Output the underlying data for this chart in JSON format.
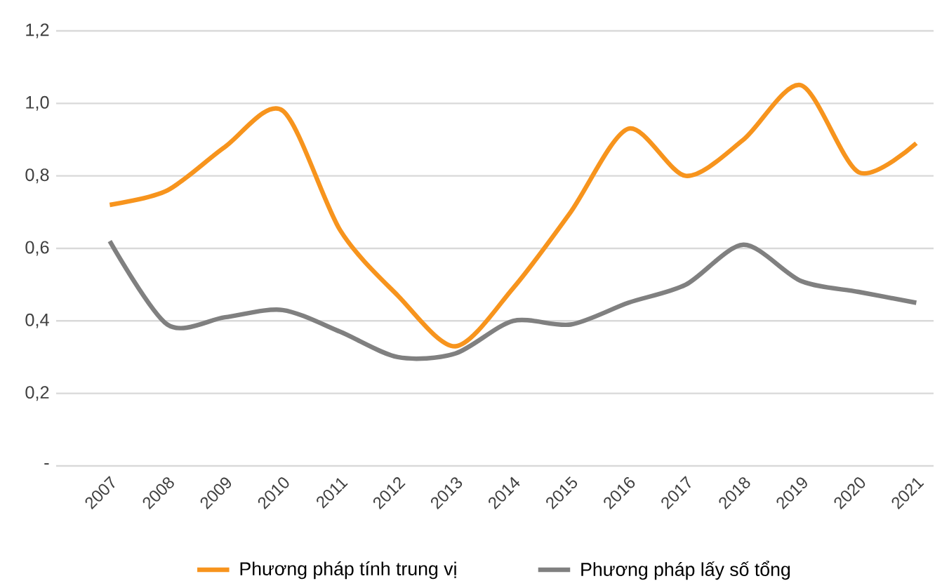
{
  "chart_data": {
    "type": "line",
    "categories": [
      "2007",
      "2008",
      "2009",
      "2010",
      "2011",
      "2012",
      "2013",
      "2014",
      "2015",
      "2016",
      "2017",
      "2018",
      "2019",
      "2020",
      "2021"
    ],
    "series": [
      {
        "name": "Phương pháp tính trung vị",
        "color": "#f7941d",
        "values": [
          0.72,
          0.76,
          0.88,
          0.98,
          0.65,
          0.47,
          0.33,
          0.49,
          0.7,
          0.93,
          0.8,
          0.9,
          1.05,
          0.81,
          0.89
        ]
      },
      {
        "name": "Phương pháp lấy số tổng",
        "color": "#808080",
        "values": [
          0.62,
          0.39,
          0.41,
          0.43,
          0.37,
          0.3,
          0.31,
          0.4,
          0.39,
          0.45,
          0.5,
          0.61,
          0.51,
          0.48,
          0.45
        ]
      }
    ],
    "ylim": [
      0,
      1.2
    ],
    "yticks": [
      {
        "value": 0,
        "label": "-"
      },
      {
        "value": 0.2,
        "label": "0,2"
      },
      {
        "value": 0.4,
        "label": "0,4"
      },
      {
        "value": 0.6,
        "label": "0,6"
      },
      {
        "value": 0.8,
        "label": "0,8"
      },
      {
        "value": 1.0,
        "label": "1,0"
      },
      {
        "value": 1.2,
        "label": "1,2"
      }
    ],
    "grid": "y",
    "legend": "bottom"
  }
}
